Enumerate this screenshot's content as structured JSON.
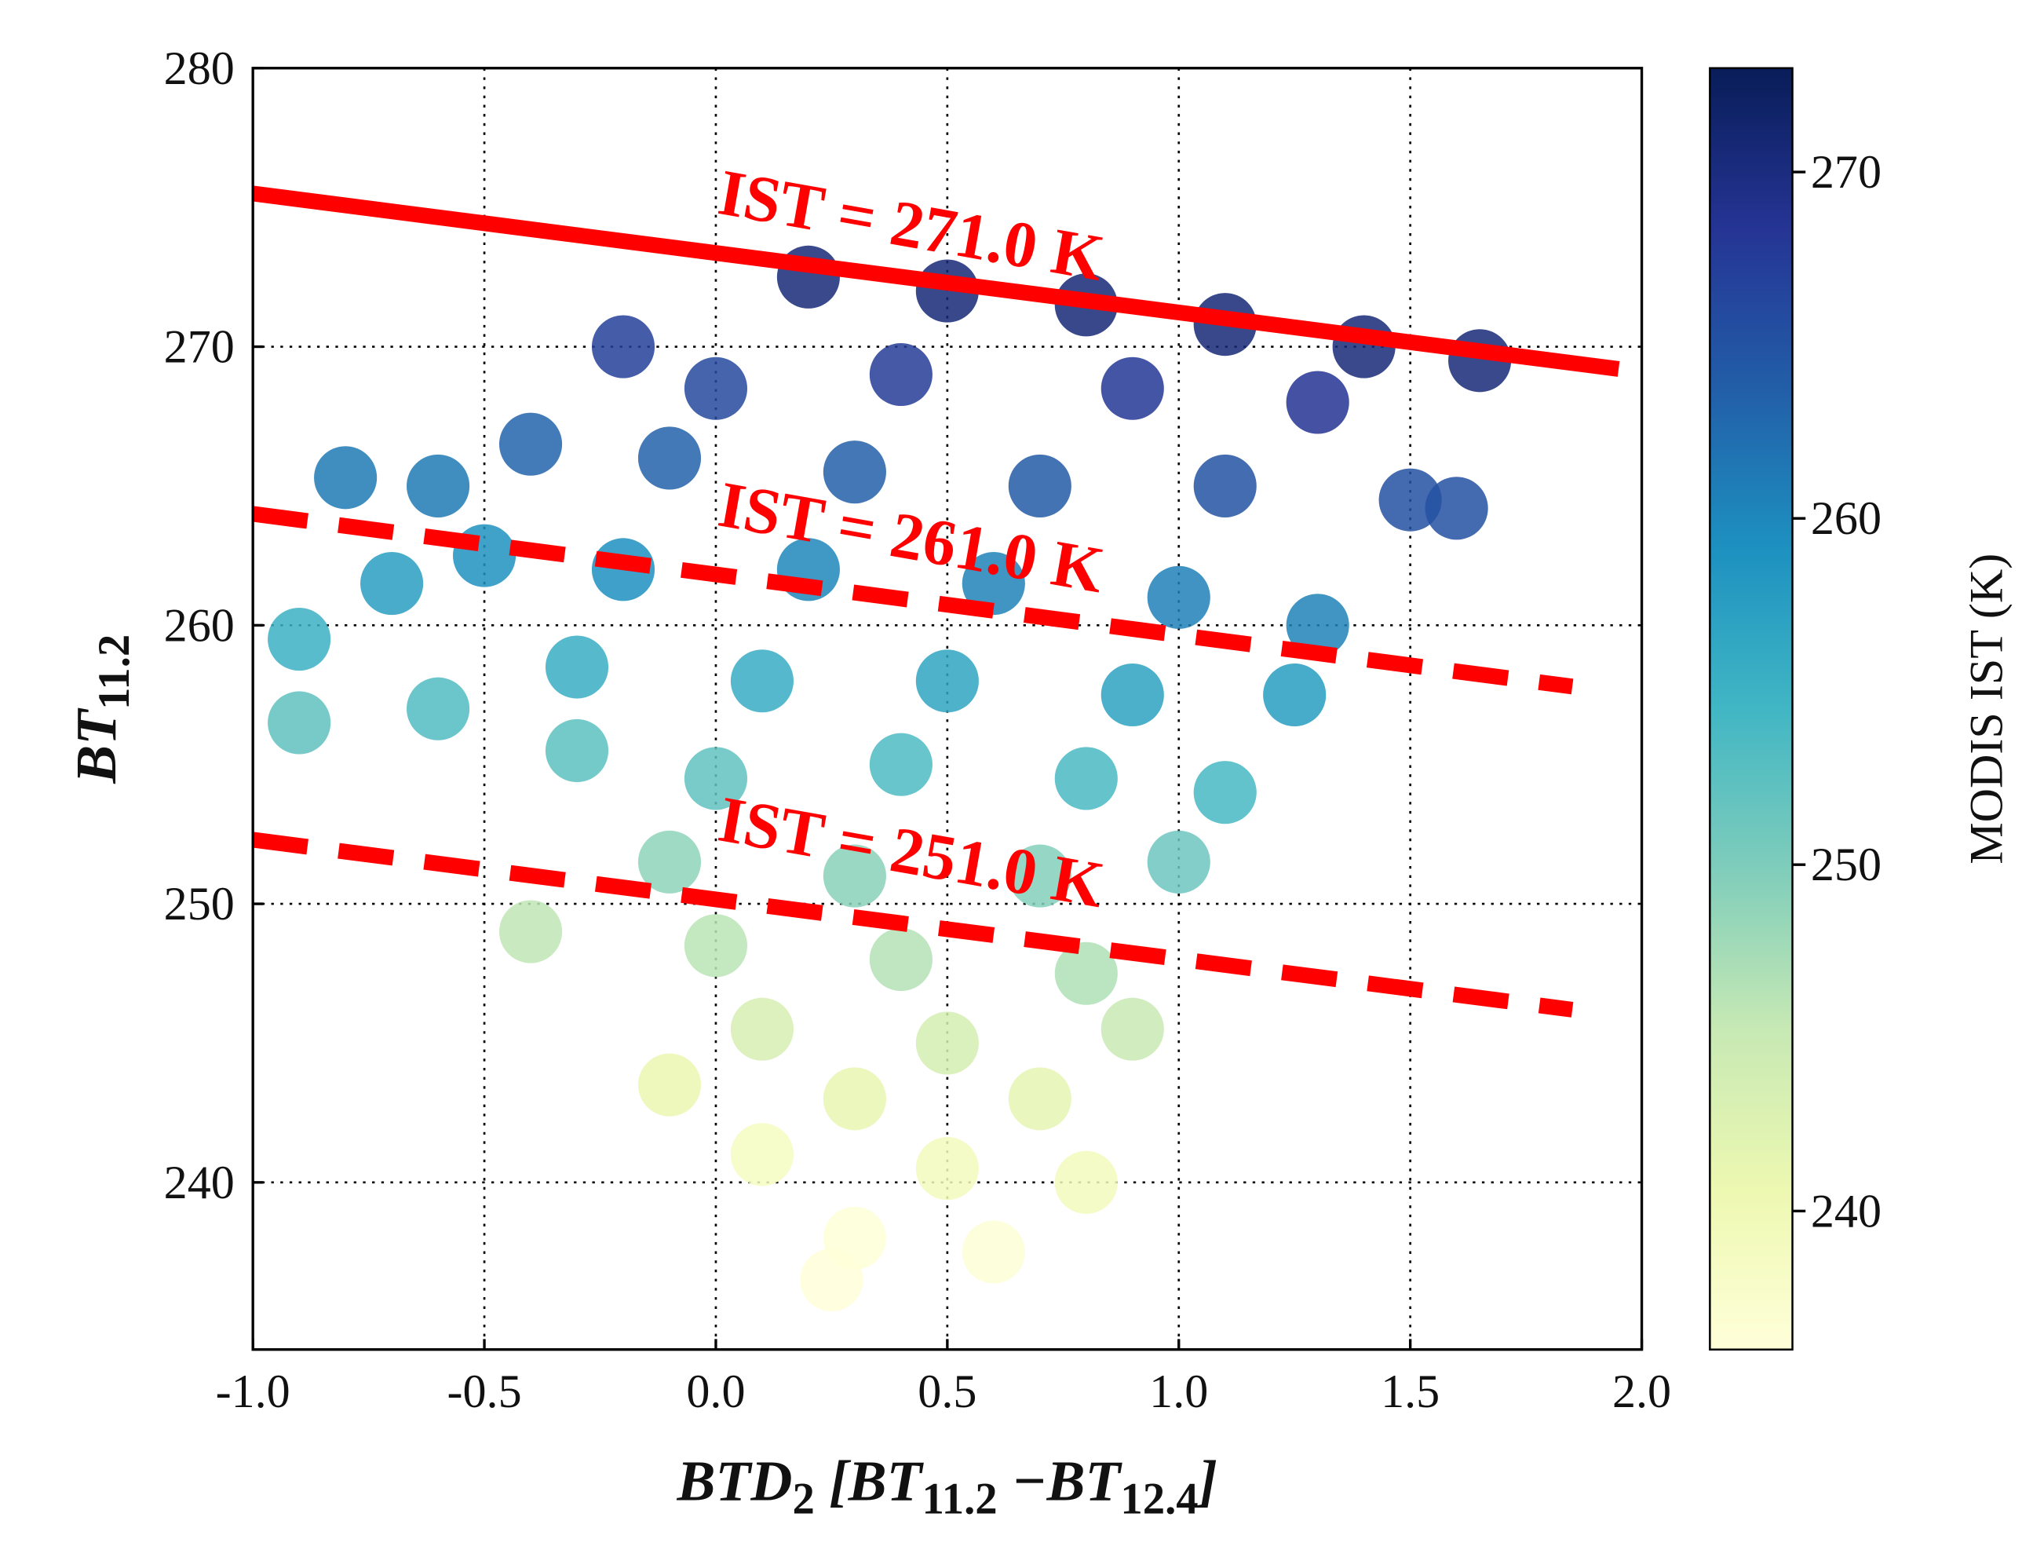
{
  "chart_data": {
    "type": "scatter",
    "xlabel_parts": [
      "BTD",
      "2",
      " [BT",
      "11.2",
      " −BT",
      "12.4",
      "]"
    ],
    "ylabel_parts": [
      "BT",
      "11.2"
    ],
    "xlim": [
      -1,
      2
    ],
    "ylim": [
      234,
      280
    ],
    "xticks": [
      {
        "value": -1,
        "label": "-1.0"
      },
      {
        "value": -0.5,
        "label": "-0.5"
      },
      {
        "value": 0,
        "label": "0.0"
      },
      {
        "value": 0.5,
        "label": "0.5"
      },
      {
        "value": 1,
        "label": "1.0"
      },
      {
        "value": 1.5,
        "label": "1.5"
      },
      {
        "value": 2,
        "label": "2.0"
      }
    ],
    "yticks": [
      240,
      250,
      260,
      270,
      280
    ],
    "grid": true,
    "points": {
      "x": [
        0.2,
        0.5,
        0.8,
        1.1,
        1.4,
        1.65,
        -0.2,
        0.0,
        0.4,
        0.9,
        1.3,
        -0.4,
        -0.6,
        -0.8,
        -0.1,
        0.3,
        0.7,
        1.1,
        1.5,
        1.6,
        -0.5,
        -0.7,
        -0.9,
        -0.2,
        0.2,
        0.6,
        1.0,
        1.3,
        -0.3,
        0.1,
        0.5,
        0.9,
        1.25,
        -0.6,
        -0.9,
        -0.3,
        0.0,
        0.4,
        0.8,
        1.1,
        -0.1,
        0.3,
        0.7,
        1.0,
        -0.4,
        0.0,
        0.4,
        0.8,
        0.1,
        0.5,
        0.9,
        -0.1,
        0.3,
        0.7,
        0.1,
        0.5,
        0.8,
        0.3,
        0.6,
        0.25
      ],
      "y": [
        272.5,
        272.0,
        271.5,
        270.8,
        270.0,
        269.5,
        270.0,
        268.5,
        269.0,
        268.5,
        268.0,
        266.5,
        265.0,
        265.3,
        266.0,
        265.5,
        265.0,
        265.0,
        264.5,
        264.2,
        262.5,
        261.5,
        259.5,
        262.0,
        262.0,
        261.5,
        261.0,
        260.0,
        258.5,
        258.0,
        258.0,
        257.5,
        257.5,
        257.0,
        256.5,
        255.5,
        254.5,
        255.0,
        254.5,
        254.0,
        251.5,
        251.0,
        251.0,
        251.5,
        249.0,
        248.5,
        248.0,
        247.5,
        245.5,
        245.0,
        245.5,
        243.5,
        243.0,
        243.0,
        241.0,
        240.5,
        240.0,
        238.0,
        237.5,
        236.5
      ],
      "values": [
        270.5,
        270.7,
        270.8,
        270.8,
        270.6,
        270.6,
        267.2,
        266.1,
        267.5,
        268.0,
        268.4,
        263.2,
        261.3,
        261.2,
        263.4,
        263.7,
        264.1,
        265.0,
        265.3,
        265.2,
        259.0,
        257.6,
        255.2,
        259.2,
        260.0,
        260.4,
        260.7,
        260.4,
        255.5,
        255.8,
        256.7,
        257.0,
        257.8,
        253.3,
        252.2,
        252.5,
        252.1,
        253.5,
        253.8,
        254.0,
        248.9,
        249.2,
        249.6,
        251.2,
        245.7,
        246.1,
        246.5,
        246.8,
        243.3,
        243.7,
        245.0,
        240.9,
        241.2,
        241.6,
        238.8,
        239.2,
        239.3,
        236.2,
        236.4,
        234.6
      ]
    },
    "lines": [
      {
        "x": [
          -1,
          1.95
        ],
        "y": [
          275.5,
          269.2
        ],
        "color": "#ff0000",
        "style": "solid"
      },
      {
        "x": [
          -1,
          1.85
        ],
        "y": [
          264.0,
          257.8
        ],
        "color": "#ff0000",
        "style": "dashed"
      },
      {
        "x": [
          -1,
          1.85
        ],
        "y": [
          252.3,
          246.2
        ],
        "color": "#ff0000",
        "style": "dashed"
      }
    ],
    "annotations": [
      {
        "text": "IST = 271.0 K",
        "x": 0.0,
        "y": 274.8
      },
      {
        "text": "IST = 261.0 K",
        "x": 0.0,
        "y": 263.6
      },
      {
        "text": "IST = 251.0 K",
        "x": 0.0,
        "y": 252.3
      }
    ],
    "colorbar": {
      "label": "MODIS IST (K)",
      "clim": [
        236,
        273
      ],
      "ticks": [
        240,
        250,
        260,
        270
      ],
      "colormap": [
        "#ffffd9",
        "#edf8b1",
        "#c7e9b4",
        "#7fcdbb",
        "#41b6c4",
        "#1d91c0",
        "#225ea8",
        "#253494",
        "#081d58"
      ]
    }
  }
}
